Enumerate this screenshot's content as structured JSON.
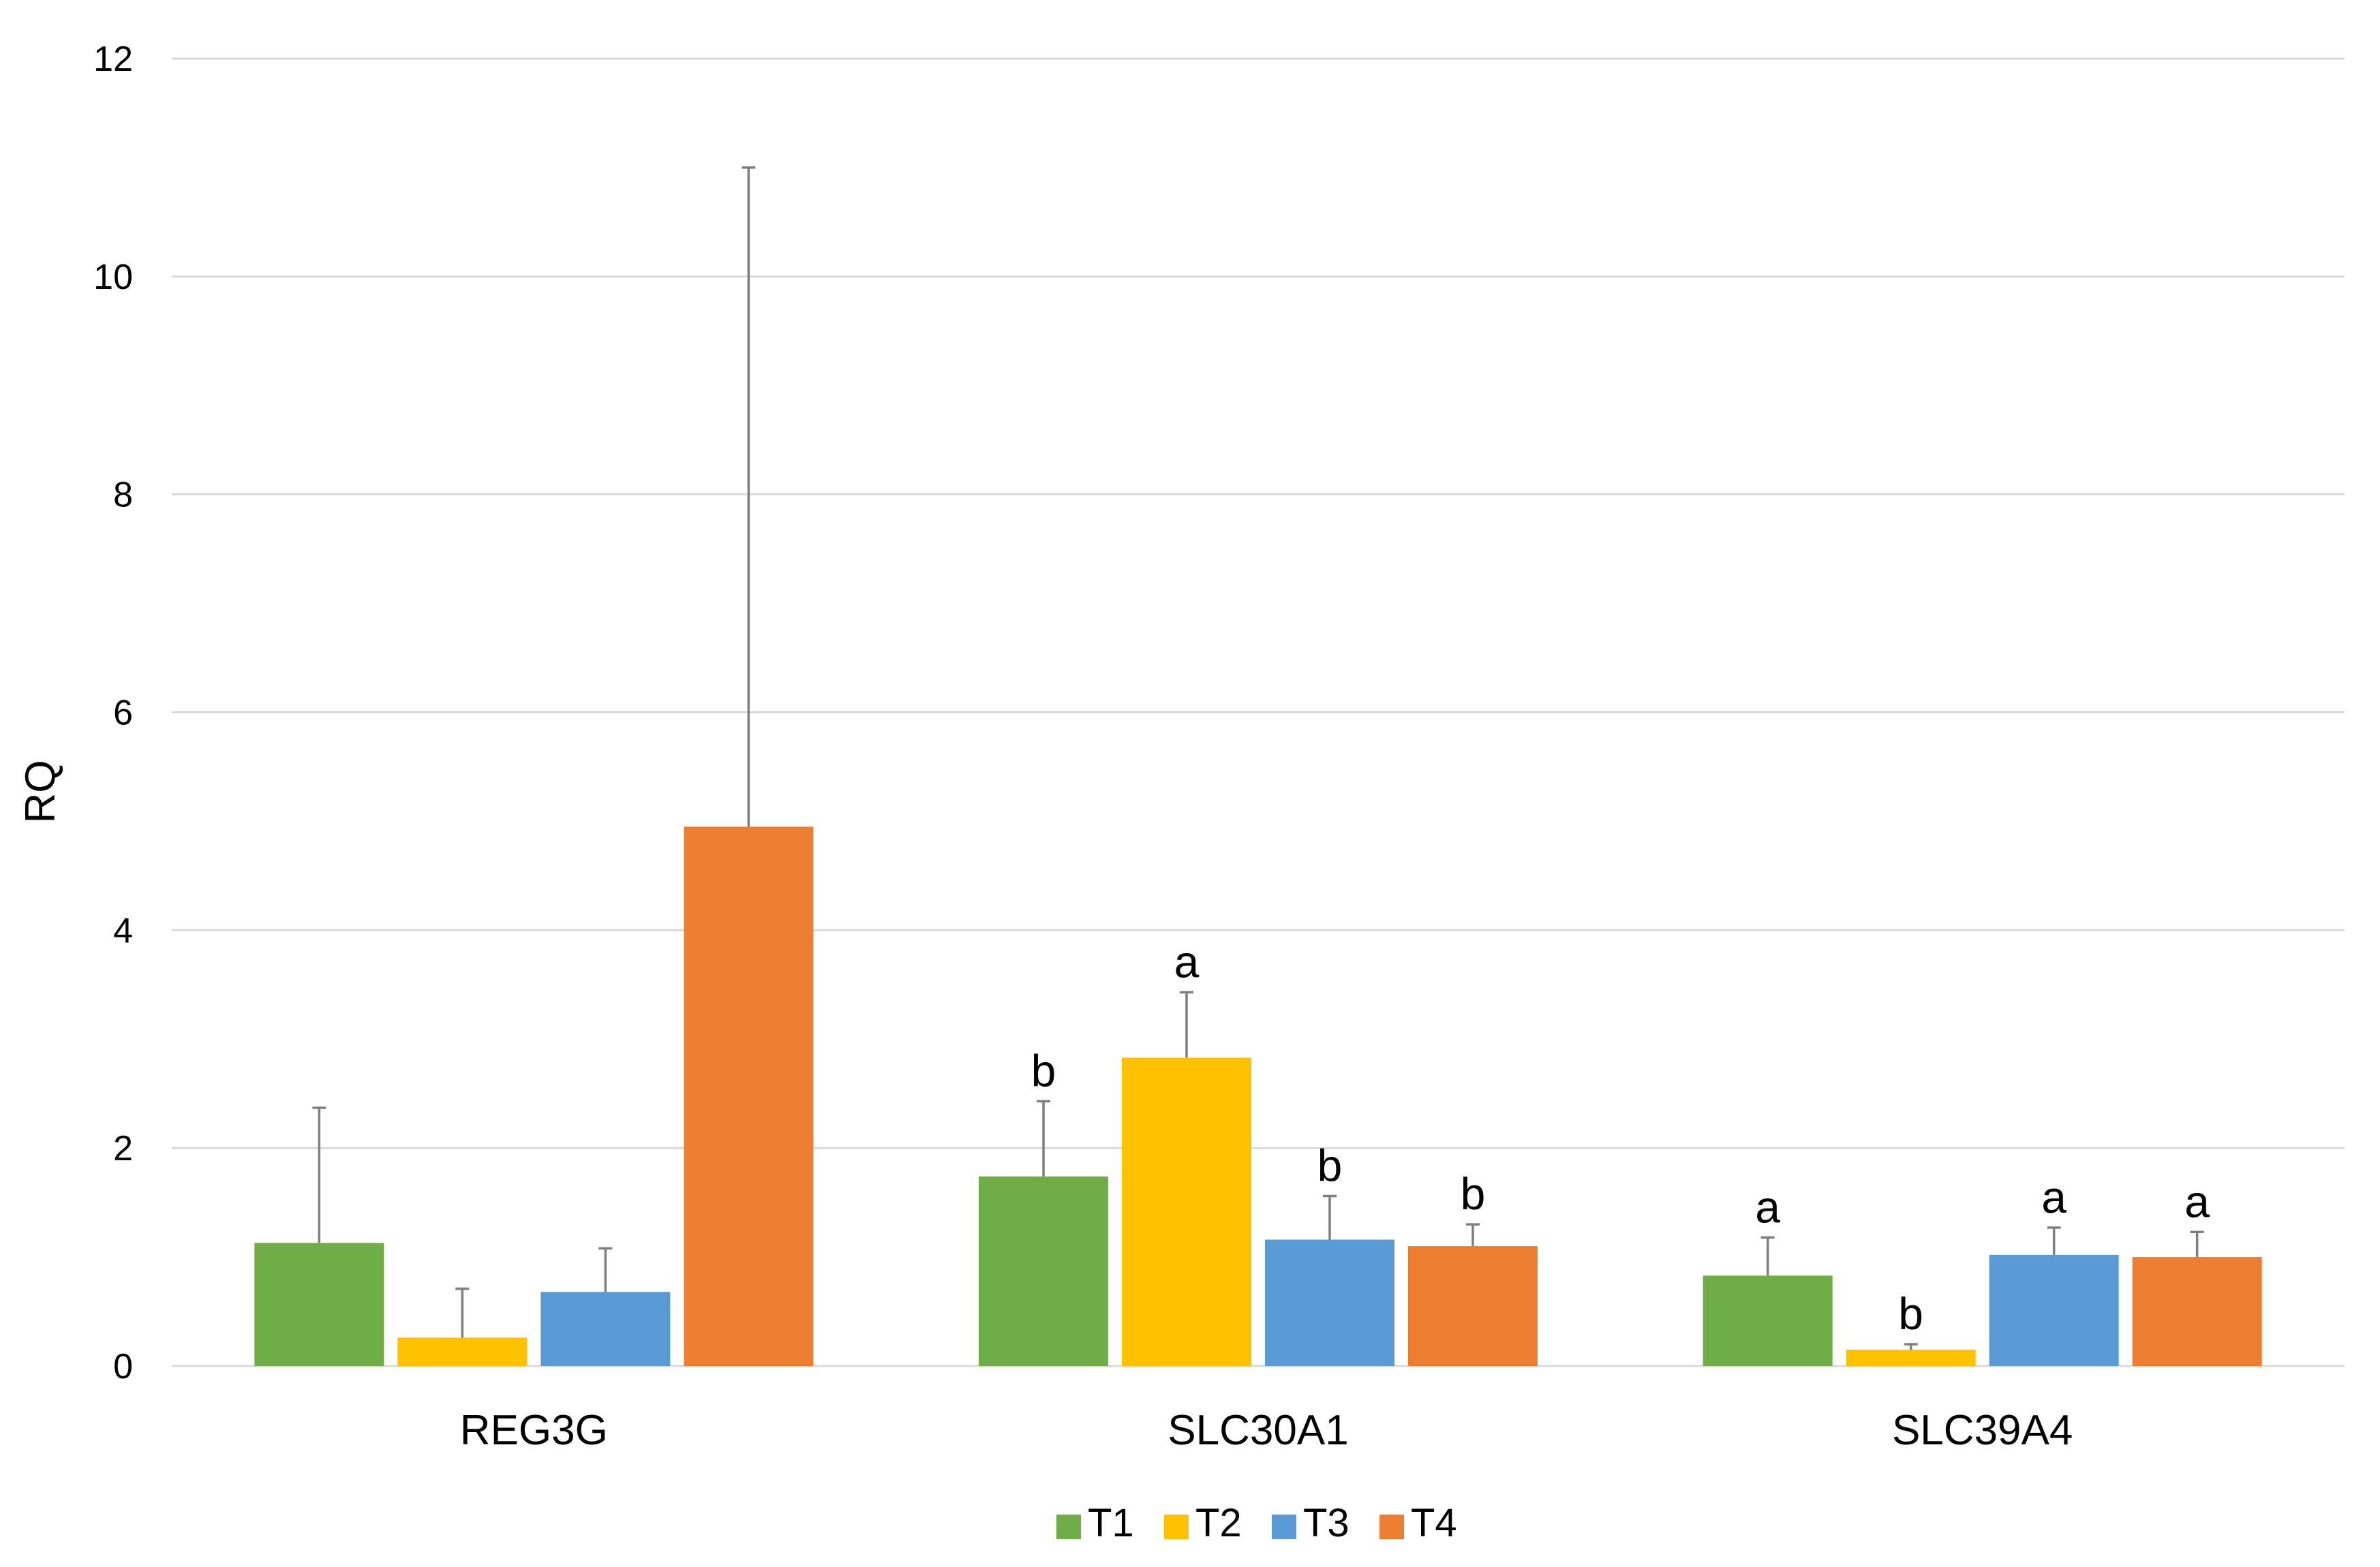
{
  "chart_data": {
    "type": "bar",
    "title": "",
    "xlabel": "",
    "ylabel": "RQ",
    "ylim": [
      0,
      12
    ],
    "yticks": [
      0,
      2,
      4,
      6,
      8,
      10,
      12
    ],
    "ytick_labels": [
      "0",
      "2",
      "4",
      "6",
      "8",
      "10",
      "12"
    ],
    "grid": true,
    "legend_position": "bottom-center",
    "categories": [
      "REG3G",
      "SLC30A1",
      "SLC39A4"
    ],
    "series": [
      {
        "name": "T1",
        "color": "#70ad47",
        "values": [
          1.13,
          1.74,
          0.83
        ],
        "errors": [
          1.24,
          0.69,
          0.35
        ],
        "letters": [
          "",
          "b",
          "a"
        ]
      },
      {
        "name": "T2",
        "color": "#ffc000",
        "values": [
          0.26,
          2.83,
          0.15
        ],
        "errors": [
          0.45,
          0.6,
          0.05
        ],
        "letters": [
          "",
          "a",
          "b"
        ]
      },
      {
        "name": "T3",
        "color": "#5b9bd5",
        "values": [
          0.68,
          1.16,
          1.02
        ],
        "errors": [
          0.4,
          0.4,
          0.25
        ],
        "letters": [
          "",
          "b",
          "a"
        ]
      },
      {
        "name": "T4",
        "color": "#ed7d31",
        "values": [
          4.95,
          1.1,
          1.0
        ],
        "errors": [
          6.05,
          0.2,
          0.23
        ],
        "letters": [
          "",
          "b",
          "a"
        ]
      }
    ]
  }
}
